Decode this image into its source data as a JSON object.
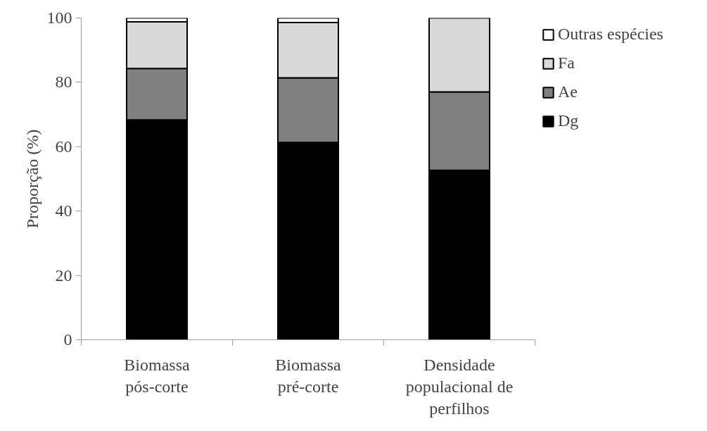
{
  "chart_data": {
    "type": "bar",
    "stacked": true,
    "ylabel": "Proporção (%)",
    "categories": [
      "Biomassa\npós-corte",
      "Biomassa\npré-corte",
      "Densidade\npopulacional de\nperfilhos"
    ],
    "series": [
      {
        "name": "Dg",
        "color": "#000000",
        "values": [
          68.3,
          61.3,
          52.7
        ]
      },
      {
        "name": "Ae",
        "color": "#808080",
        "values": [
          16.0,
          20.1,
          24.3
        ]
      },
      {
        "name": "Fa",
        "color": "#d9d9d9",
        "values": [
          14.5,
          17.2,
          23.0
        ]
      },
      {
        "name": "Outras espécies",
        "color": "#ffffff",
        "values": [
          1.2,
          1.4,
          0
        ]
      }
    ],
    "ylim": [
      0,
      100
    ],
    "yticks": [
      0,
      20,
      40,
      60,
      80,
      100
    ],
    "grid": false,
    "legend": "right"
  }
}
